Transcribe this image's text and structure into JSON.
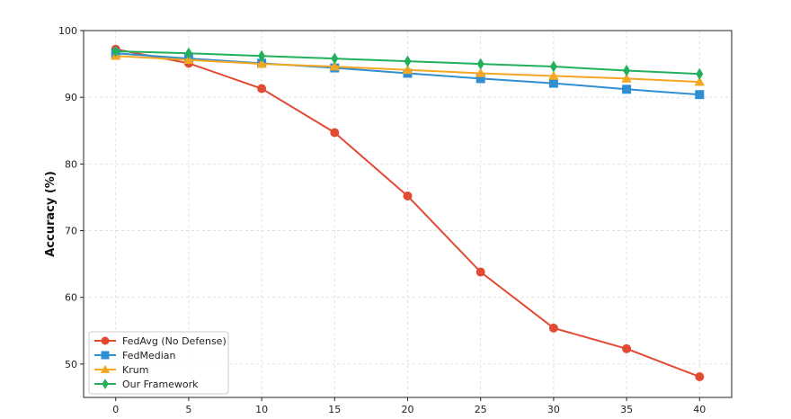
{
  "chart_data": {
    "type": "line",
    "title": "",
    "xlabel": "",
    "ylabel": "Accuracy (%)",
    "x": [
      0,
      5,
      10,
      15,
      20,
      25,
      30,
      35,
      40
    ],
    "xlim": [
      -2.2,
      42.2
    ],
    "ylim": [
      45,
      100
    ],
    "xticks": [
      0,
      5,
      10,
      15,
      20,
      25,
      30,
      35,
      40
    ],
    "yticks": [
      50,
      60,
      70,
      80,
      90,
      100
    ],
    "grid": true,
    "legend_position": "bottom-left",
    "series": [
      {
        "name": "FedAvg (No Defense)",
        "color": "#e24a33",
        "marker": "circle",
        "values": [
          97.2,
          95.1,
          91.3,
          84.7,
          75.2,
          63.8,
          55.4,
          52.3,
          48.1
        ]
      },
      {
        "name": "FedMedian",
        "color": "#2f8fd0",
        "marker": "square",
        "values": [
          96.6,
          95.8,
          95.1,
          94.4,
          93.6,
          92.8,
          92.1,
          91.2,
          90.4
        ]
      },
      {
        "name": "Krum",
        "color": "#f5a623",
        "marker": "triangle",
        "values": [
          96.2,
          95.6,
          95.0,
          94.6,
          94.1,
          93.6,
          93.2,
          92.8,
          92.3
        ]
      },
      {
        "name": "Our Framework",
        "color": "#22b05a",
        "marker": "diamond",
        "values": [
          96.9,
          96.6,
          96.2,
          95.8,
          95.4,
          95.0,
          94.6,
          94.0,
          93.5
        ]
      }
    ]
  }
}
